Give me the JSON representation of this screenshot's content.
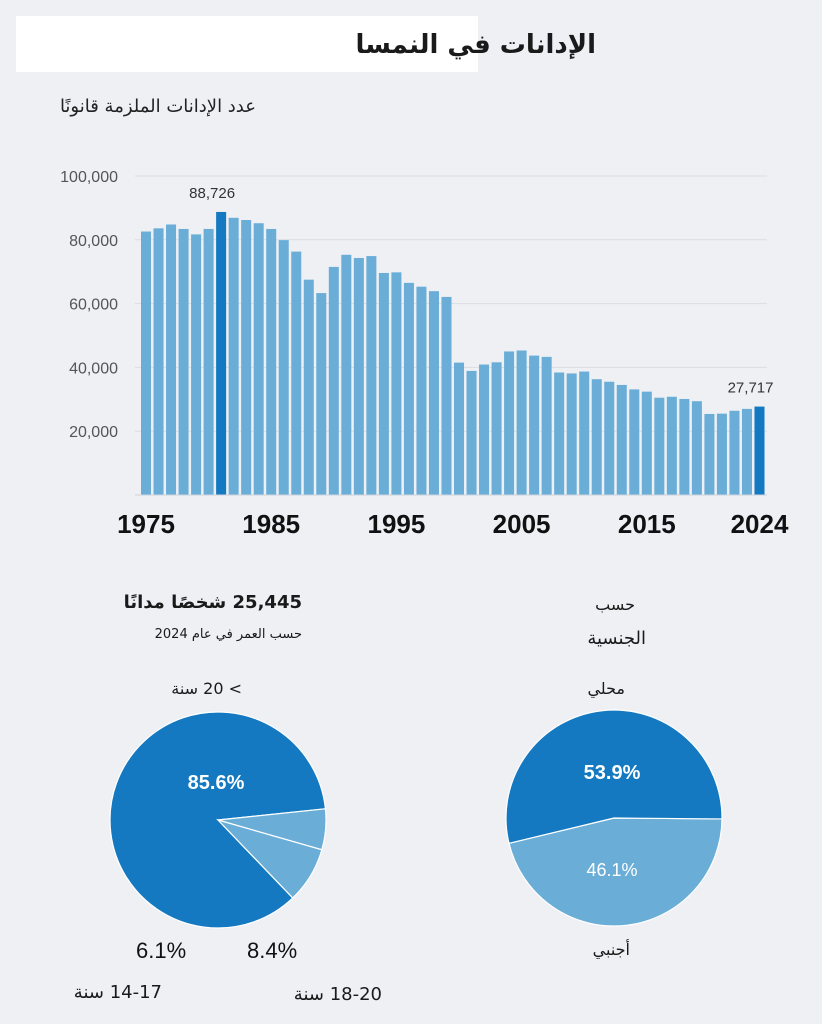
{
  "header": {
    "title": "الإدانات في النمسا",
    "subtitle": "عدد الإدانات الملزمة قانونًا"
  },
  "chart_data": [
    {
      "type": "bar",
      "title": "عدد الإدانات الملزمة قانونًا",
      "x_start": 1975,
      "x_end": 2024,
      "x_ticks": [
        "1975",
        "1985",
        "1995",
        "2005",
        "2015",
        "2024"
      ],
      "y_ticks": [
        "100,000",
        "80,000",
        "60,000",
        "40,000",
        "20,000"
      ],
      "ylim": [
        0,
        100000
      ],
      "grid": true,
      "years": [
        1975,
        1976,
        1977,
        1978,
        1979,
        1980,
        1981,
        1982,
        1983,
        1984,
        1985,
        1986,
        1987,
        1988,
        1989,
        1990,
        1991,
        1992,
        1993,
        1994,
        1995,
        1996,
        1997,
        1998,
        1999,
        2000,
        2001,
        2002,
        2003,
        2004,
        2005,
        2006,
        2007,
        2008,
        2009,
        2010,
        2011,
        2012,
        2013,
        2014,
        2015,
        2016,
        2017,
        2018,
        2019,
        2020,
        2021,
        2022,
        2023,
        2024
      ],
      "values": [
        82600,
        83600,
        84800,
        83400,
        81700,
        83400,
        88726,
        86900,
        86200,
        85200,
        83400,
        79900,
        76300,
        67500,
        63300,
        71500,
        75300,
        74300,
        74900,
        69600,
        69800,
        66500,
        65300,
        63900,
        62100,
        41500,
        38900,
        40900,
        41600,
        45000,
        45300,
        43700,
        43300,
        38400,
        38100,
        38700,
        36300,
        35500,
        34500,
        33100,
        32400,
        30500,
        30800,
        30100,
        29400,
        25400,
        25500,
        26400,
        27000,
        27717
      ],
      "highlight_years": [
        1981,
        2024
      ],
      "data_labels": [
        {
          "year": 1981,
          "text": "88,726"
        },
        {
          "year": 2024,
          "text": "27,717"
        }
      ],
      "colors": {
        "bar": "#6aaed8",
        "highlight": "#1479c0"
      }
    },
    {
      "type": "pie",
      "title": "25,445 شخصًا مدانًا",
      "subtitle": "حسب العمر في عام 2024",
      "slices": [
        {
          "label": "> 20 سنة",
          "value": 85.6,
          "text": "85.6%",
          "color": "#1479c0"
        },
        {
          "label": "18-20 سنة",
          "value": 8.4,
          "text": "8.4%",
          "color": "#6aaed8"
        },
        {
          "label": "14-17 سنة",
          "value": 6.1,
          "text": "6.1%",
          "color": "#6aaed8"
        }
      ]
    },
    {
      "type": "pie",
      "title": "حسب",
      "subtitle": "الجنسية",
      "slices": [
        {
          "label": "محلي",
          "value": 53.9,
          "text": "53.9%",
          "color": "#1479c0"
        },
        {
          "label": "أجنبي",
          "value": 46.1,
          "text": "46.1%",
          "color": "#6aaed8"
        }
      ]
    }
  ]
}
